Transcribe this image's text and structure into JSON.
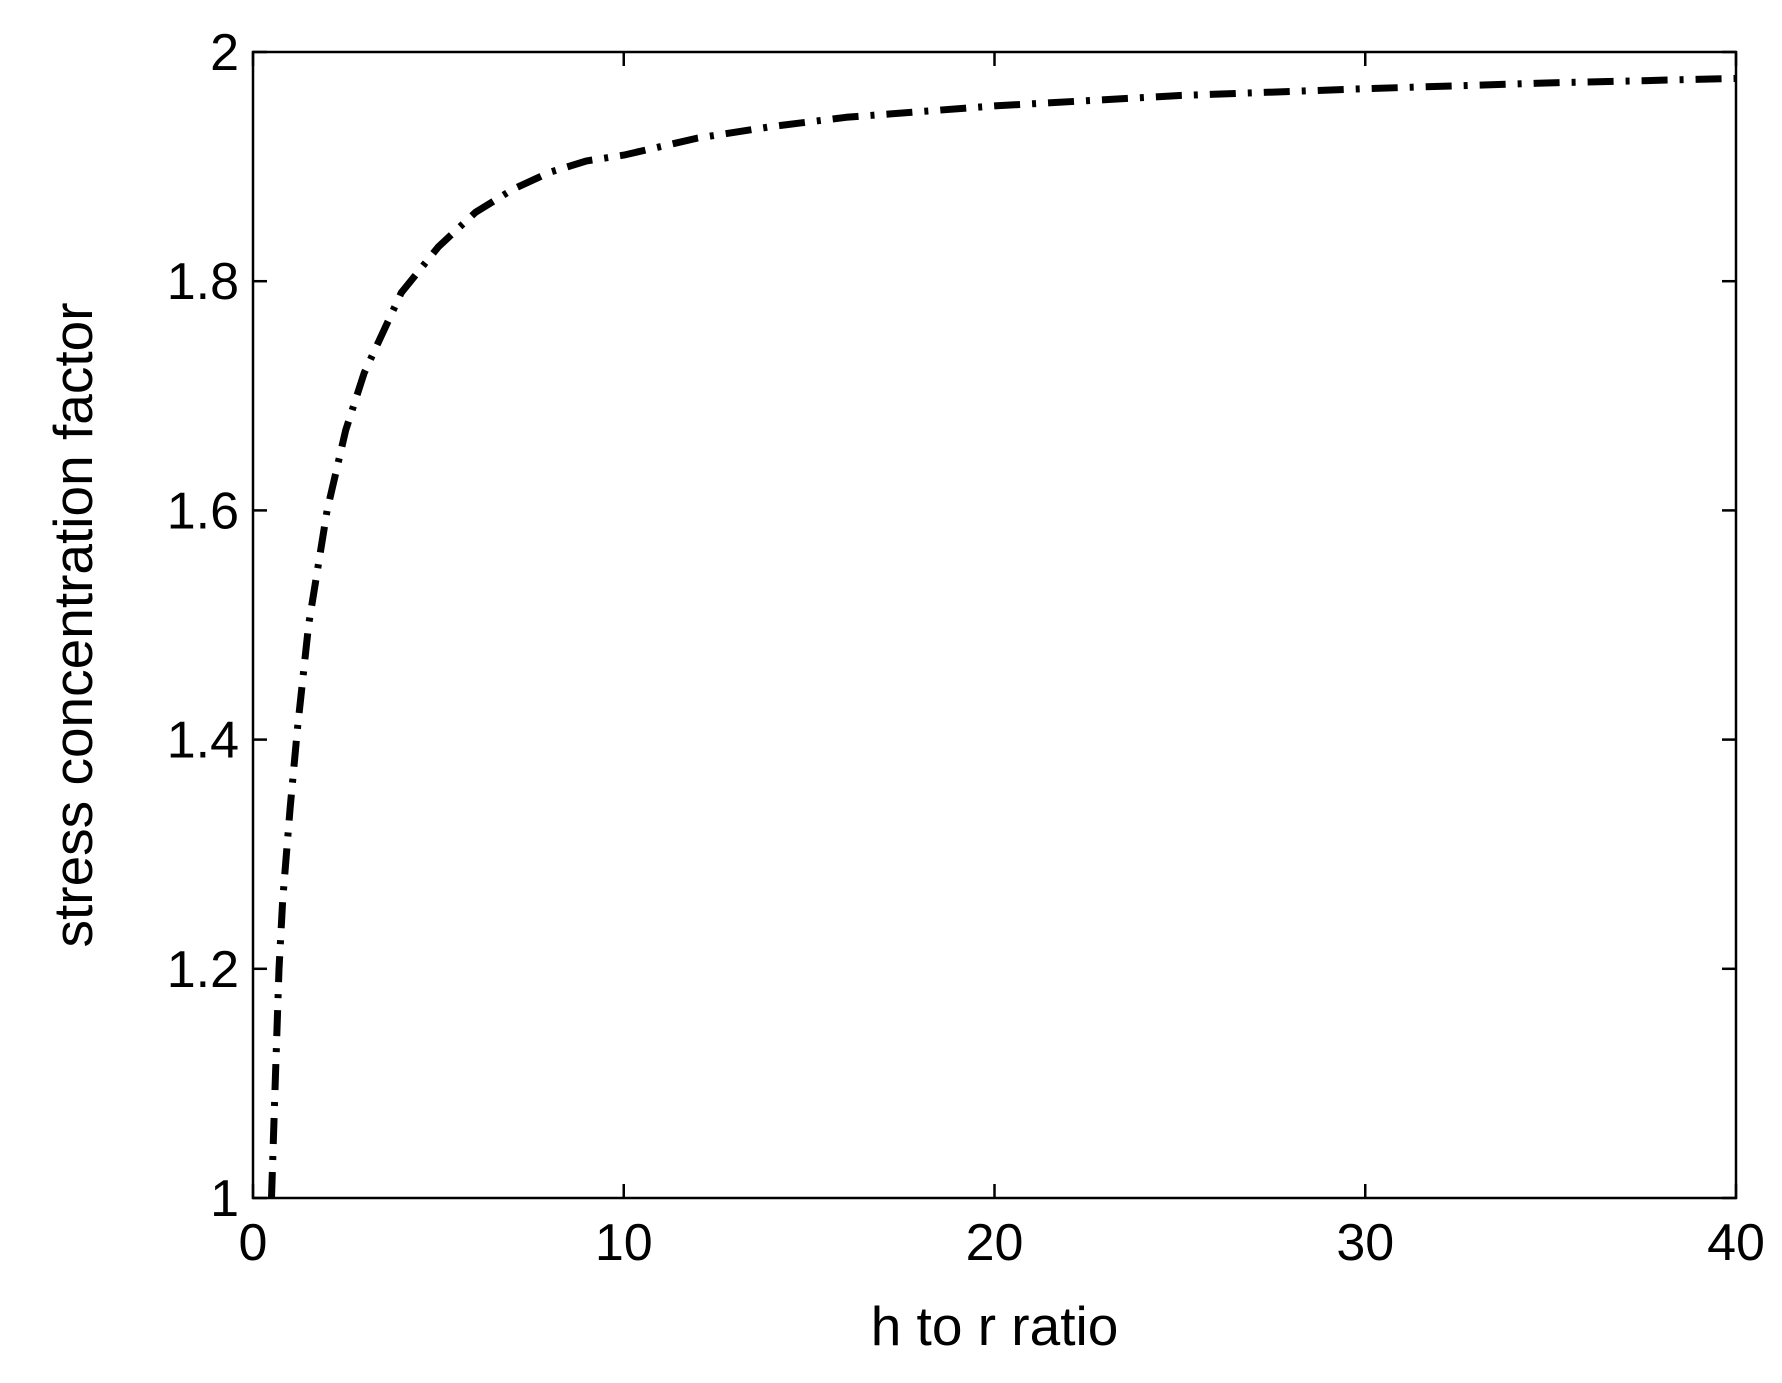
{
  "chart_data": {
    "type": "line",
    "title": "",
    "xlabel": "h to r ratio",
    "ylabel": "stress concentration factor",
    "xlim": [
      0,
      40
    ],
    "ylim": [
      1,
      2
    ],
    "xticks": [
      0,
      10,
      20,
      30,
      40
    ],
    "xtick_labels": [
      "0",
      "10",
      "20",
      "30",
      "40"
    ],
    "yticks": [
      1,
      1.2,
      1.4,
      1.6,
      1.8,
      2
    ],
    "ytick_labels": [
      "1",
      "1.2",
      "1.4",
      "1.6",
      "1.8",
      "2"
    ],
    "grid": false,
    "legend": null,
    "series": [
      {
        "style": "dash-dot",
        "color": "#000000",
        "x": [
          0.5,
          0.6,
          0.7,
          0.8,
          1.0,
          1.2,
          1.5,
          2.0,
          2.5,
          3.0,
          4.0,
          5.0,
          6.0,
          7.0,
          8.0,
          9.0,
          10.0,
          12.0,
          14.0,
          16.0,
          18.0,
          20.0,
          25.0,
          30.0,
          35.0,
          40.0
        ],
        "y": [
          1.0,
          1.1,
          1.2,
          1.26,
          1.34,
          1.41,
          1.5,
          1.6,
          1.67,
          1.72,
          1.79,
          1.83,
          1.86,
          1.88,
          1.895,
          1.905,
          1.91,
          1.925,
          1.935,
          1.943,
          1.948,
          1.953,
          1.962,
          1.968,
          1.973,
          1.977
        ]
      }
    ]
  }
}
